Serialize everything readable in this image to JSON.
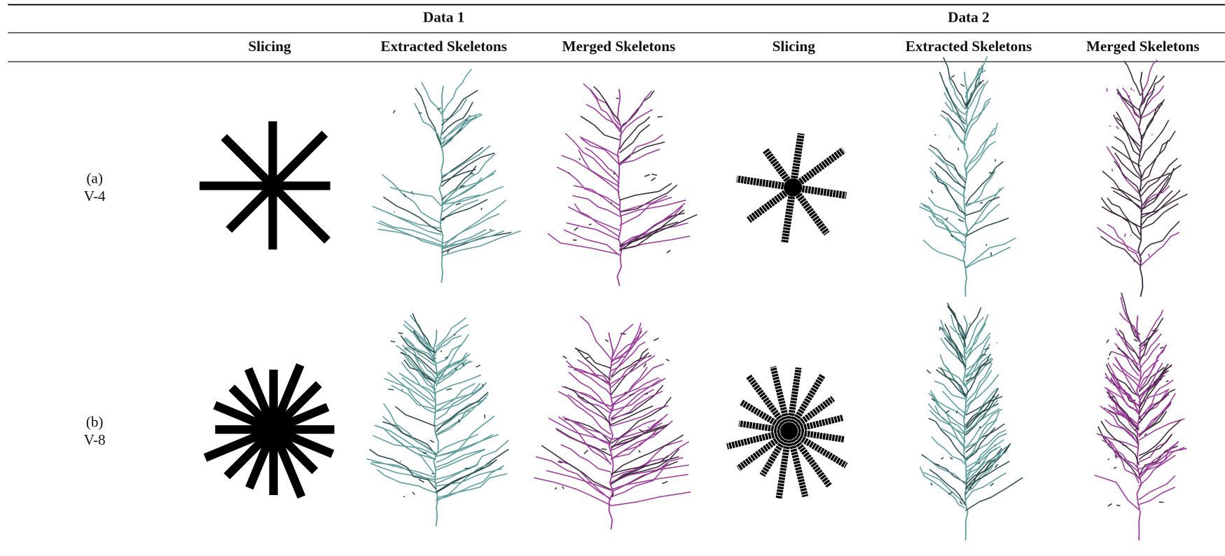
{
  "header": {
    "groups": [
      "Data 1",
      "Data 2"
    ],
    "columns": [
      "Slicing",
      "Extracted Skeletons",
      "Merged Skeletons",
      "Slicing",
      "Extracted Skeletons",
      "Merged Skeletons"
    ]
  },
  "rows": [
    {
      "label": [
        "(a)",
        "V-4"
      ]
    },
    {
      "label": [
        "(b)",
        "V-8"
      ]
    }
  ]
}
